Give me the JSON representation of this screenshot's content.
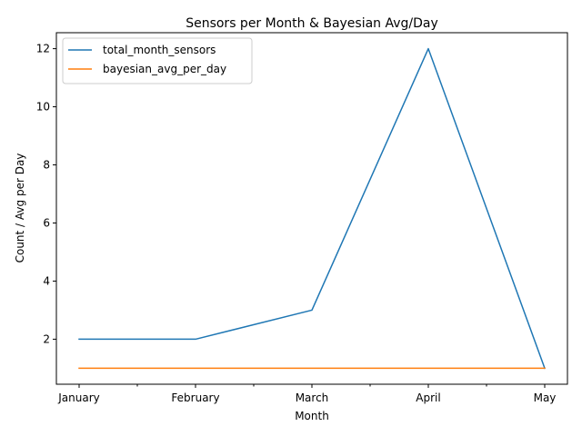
{
  "chart_data": {
    "type": "line",
    "title": "Sensors per Month & Bayesian Avg/Day",
    "xlabel": "Month",
    "ylabel": "Count / Avg per Day",
    "categories": [
      "January",
      "February",
      "March",
      "April",
      "May"
    ],
    "series": [
      {
        "name": "total_month_sensors",
        "values": [
          2,
          2,
          3,
          12,
          1
        ],
        "color": "#1f77b4"
      },
      {
        "name": "bayesian_avg_per_day",
        "values": [
          1,
          1,
          1,
          1,
          1
        ],
        "color": "#ff7f0e"
      }
    ],
    "yticks": [
      2,
      4,
      6,
      8,
      10,
      12
    ],
    "ylim": [
      0.45,
      12.55
    ],
    "grid": false,
    "legend_position": "upper-left"
  }
}
